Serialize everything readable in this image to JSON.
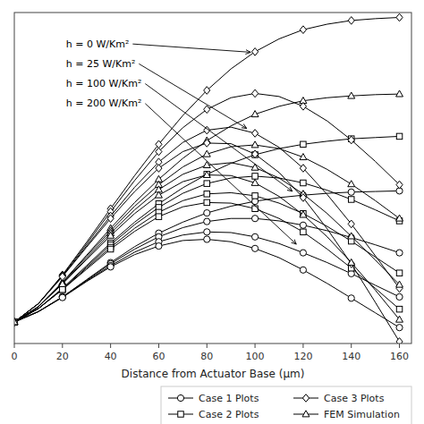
{
  "chart_data": {
    "type": "line",
    "xlabel": "Distance from Actuator Base (μm)",
    "x": [
      0,
      10,
      20,
      30,
      40,
      50,
      60,
      70,
      80,
      90,
      100,
      110,
      120,
      130,
      140,
      150,
      160
    ],
    "xlim": [
      0,
      165
    ],
    "xticks": [
      0,
      20,
      40,
      60,
      80,
      100,
      120,
      140,
      160
    ],
    "ylim": [
      -0.3,
      5.1
    ],
    "tick_labels": "x",
    "grid": false,
    "legend": "lower right",
    "color": "black",
    "series": [
      {
        "name": "Case 1 Plots",
        "marker": "circle",
        "values": [
          0.05,
          0.22,
          0.46,
          0.74,
          1.02,
          1.28,
          1.5,
          1.68,
          1.83,
          1.94,
          2.02,
          2.08,
          2.12,
          2.15,
          2.17,
          2.18,
          2.19
        ]
      },
      {
        "name": "Case 2 Plots",
        "marker": "square",
        "values": [
          0.05,
          0.27,
          0.6,
          0.97,
          1.34,
          1.68,
          1.98,
          2.24,
          2.46,
          2.64,
          2.78,
          2.88,
          2.95,
          3.0,
          3.04,
          3.06,
          3.08
        ]
      },
      {
        "name": "Case 3 Plots",
        "marker": "diamond",
        "values": [
          0.05,
          0.35,
          0.82,
          1.35,
          1.9,
          2.44,
          2.95,
          3.42,
          3.83,
          4.18,
          4.46,
          4.67,
          4.82,
          4.91,
          4.97,
          5.0,
          5.02
        ]
      },
      {
        "name": "FEM Simulation",
        "marker": "triangle",
        "values": [
          0.05,
          0.3,
          0.7,
          1.14,
          1.58,
          2.0,
          2.38,
          2.72,
          3.01,
          3.25,
          3.44,
          3.57,
          3.66,
          3.71,
          3.74,
          3.76,
          3.77
        ]
      },
      {
        "name": "Case 1 Plots",
        "marker": "circle",
        "values": [
          0.05,
          0.22,
          0.46,
          0.73,
          1.0,
          1.24,
          1.44,
          1.59,
          1.69,
          1.74,
          1.74,
          1.7,
          1.63,
          1.54,
          1.43,
          1.31,
          1.18
        ]
      },
      {
        "name": "Case 2 Plots",
        "marker": "square",
        "values": [
          0.05,
          0.27,
          0.59,
          0.95,
          1.31,
          1.64,
          1.92,
          2.15,
          2.31,
          2.4,
          2.43,
          2.4,
          2.32,
          2.2,
          2.05,
          1.88,
          1.7
        ]
      },
      {
        "name": "Case 3 Plots",
        "marker": "diamond",
        "values": [
          0.05,
          0.35,
          0.81,
          1.32,
          1.85,
          2.36,
          2.83,
          3.22,
          3.52,
          3.71,
          3.78,
          3.73,
          3.57,
          3.33,
          3.02,
          2.67,
          2.29
        ]
      },
      {
        "name": "FEM Simulation",
        "marker": "triangle",
        "values": [
          0.05,
          0.3,
          0.69,
          1.12,
          1.54,
          1.94,
          2.29,
          2.58,
          2.79,
          2.91,
          2.94,
          2.88,
          2.74,
          2.54,
          2.3,
          2.03,
          1.74
        ]
      },
      {
        "name": "Case 1 Plots",
        "marker": "circle",
        "values": [
          0.05,
          0.22,
          0.46,
          0.72,
          0.97,
          1.19,
          1.36,
          1.47,
          1.52,
          1.51,
          1.44,
          1.33,
          1.18,
          1.02,
          0.84,
          0.65,
          0.46
        ]
      },
      {
        "name": "Case 2 Plots",
        "marker": "square",
        "values": [
          0.05,
          0.27,
          0.58,
          0.93,
          1.27,
          1.58,
          1.84,
          2.03,
          2.14,
          2.16,
          2.11,
          1.99,
          1.82,
          1.61,
          1.37,
          1.11,
          0.85
        ]
      },
      {
        "name": "Case 3 Plots",
        "marker": "diamond",
        "values": [
          0.05,
          0.35,
          0.8,
          1.29,
          1.78,
          2.25,
          2.66,
          2.98,
          3.18,
          3.23,
          3.13,
          2.9,
          2.56,
          2.13,
          1.65,
          1.13,
          0.6
        ]
      },
      {
        "name": "FEM Simulation",
        "marker": "triangle",
        "values": [
          0.05,
          0.3,
          0.68,
          1.09,
          1.5,
          1.88,
          2.21,
          2.46,
          2.61,
          2.65,
          2.57,
          2.4,
          2.14,
          1.82,
          1.45,
          1.06,
          0.66
        ]
      },
      {
        "name": "Case 1 Plots",
        "marker": "circle",
        "values": [
          0.05,
          0.22,
          0.45,
          0.71,
          0.95,
          1.15,
          1.29,
          1.38,
          1.4,
          1.36,
          1.25,
          1.1,
          0.9,
          0.68,
          0.44,
          0.2,
          -0.04
        ]
      },
      {
        "name": "Case 2 Plots",
        "marker": "square",
        "values": [
          0.05,
          0.27,
          0.58,
          0.91,
          1.24,
          1.53,
          1.77,
          1.93,
          2.0,
          1.99,
          1.9,
          1.74,
          1.52,
          1.24,
          0.93,
          0.6,
          0.26
        ]
      },
      {
        "name": "Case 3 Plots",
        "marker": "diamond",
        "values": [
          0.05,
          0.35,
          0.79,
          1.27,
          1.74,
          2.18,
          2.56,
          2.83,
          2.97,
          2.96,
          2.79,
          2.49,
          2.08,
          1.57,
          1.0,
          0.37,
          -0.27
        ]
      },
      {
        "name": "FEM Simulation",
        "marker": "triangle",
        "values": [
          0.05,
          0.3,
          0.67,
          1.07,
          1.46,
          1.82,
          2.12,
          2.34,
          2.45,
          2.44,
          2.32,
          2.1,
          1.8,
          1.44,
          1.02,
          0.57,
          0.09
        ]
      }
    ],
    "annotations": [
      {
        "text": "h = 0 W/Km²"
      },
      {
        "text": "h = 25 W/Km²"
      },
      {
        "text": "h = 100 W/Km²"
      },
      {
        "text": "h = 200 W/Km²"
      }
    ]
  }
}
